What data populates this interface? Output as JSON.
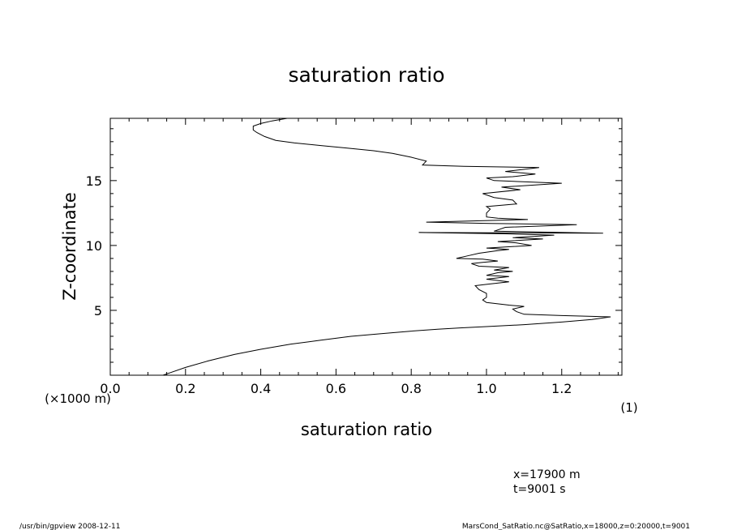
{
  "chart_data": {
    "type": "line",
    "title": "saturation ratio",
    "xlabel": "saturation ratio",
    "ylabel": "Z-coordinate",
    "x_units_label": "(1)",
    "y_units_label": "(×1000 m)",
    "xlim": [
      0.0,
      1.36
    ],
    "ylim": [
      0,
      19.8
    ],
    "x_ticks": [
      0.0,
      0.2,
      0.4,
      0.6,
      0.8,
      1.0,
      1.2
    ],
    "x_tick_labels": [
      "0.0",
      "0.2",
      "0.4",
      "0.6",
      "0.8",
      "1.0",
      "1.2"
    ],
    "y_ticks": [
      5,
      10,
      15
    ],
    "y_tick_labels": [
      "5",
      "10",
      "15"
    ],
    "grid": false,
    "series": [
      {
        "x": [
          0.14,
          0.16,
          0.2,
          0.26,
          0.33,
          0.4,
          0.48,
          0.56,
          0.64,
          0.72,
          0.8,
          0.87,
          0.93,
          1.0,
          1.1,
          1.2,
          1.28,
          1.33,
          1.2,
          1.1,
          1.08,
          1.07,
          1.1,
          1.06,
          1.03,
          1.0,
          0.99,
          1.0,
          1.0,
          0.98,
          0.97,
          1.0,
          1.06,
          1.0,
          1.06,
          1.0,
          1.03,
          1.07,
          1.02,
          1.06,
          0.98,
          0.96,
          0.99,
          1.03,
          0.99,
          0.92,
          0.95,
          0.98,
          1.03,
          1.06,
          1.0,
          1.12,
          1.08,
          1.03,
          1.15,
          1.07,
          1.18,
          1.05,
          0.82,
          1.31,
          1.02,
          1.05,
          1.24,
          1.01,
          0.84,
          1.11,
          1.03,
          1.0,
          1.0,
          1.01,
          1.0,
          1.08,
          1.07,
          1.02,
          0.99,
          1.09,
          1.04,
          1.2,
          1.02,
          1.0,
          1.07,
          1.13,
          1.05,
          1.14,
          0.94,
          0.83,
          0.84,
          0.8,
          0.75,
          0.7,
          0.63,
          0.56,
          0.49,
          0.44,
          0.41,
          0.39,
          0.38,
          0.38,
          0.4,
          0.43,
          0.47
        ],
        "y": [
          0.0,
          0.2,
          0.6,
          1.1,
          1.6,
          2.0,
          2.4,
          2.7,
          3.0,
          3.2,
          3.4,
          3.55,
          3.65,
          3.75,
          3.9,
          4.1,
          4.3,
          4.5,
          4.6,
          4.7,
          4.9,
          5.1,
          5.3,
          5.4,
          5.5,
          5.6,
          5.8,
          6.0,
          6.3,
          6.6,
          6.9,
          7.0,
          7.2,
          7.4,
          7.6,
          7.7,
          7.9,
          8.0,
          8.1,
          8.3,
          8.4,
          8.6,
          8.7,
          8.8,
          8.95,
          9.0,
          9.2,
          9.4,
          9.6,
          9.7,
          9.8,
          10.0,
          10.2,
          10.3,
          10.5,
          10.6,
          10.8,
          10.9,
          11.0,
          10.95,
          11.1,
          11.4,
          11.6,
          11.7,
          11.8,
          12.0,
          12.1,
          12.2,
          12.5,
          12.8,
          13.0,
          13.2,
          13.5,
          13.7,
          14.0,
          14.3,
          14.5,
          14.8,
          15.0,
          15.2,
          15.3,
          15.5,
          15.7,
          16.0,
          16.1,
          16.2,
          16.5,
          16.8,
          17.1,
          17.3,
          17.5,
          17.7,
          17.9,
          18.1,
          18.4,
          18.7,
          18.9,
          19.2,
          19.4,
          19.6,
          19.8
        ]
      }
    ]
  },
  "annotations": {
    "coord_x": "x=17900 m",
    "coord_t": "t=9001 s"
  },
  "footer": {
    "left": "/usr/bin/gpview   2008-12-11",
    "right": "MarsCond_SatRatio.nc@SatRatio,x=18000,z=0:20000,t=9001"
  }
}
